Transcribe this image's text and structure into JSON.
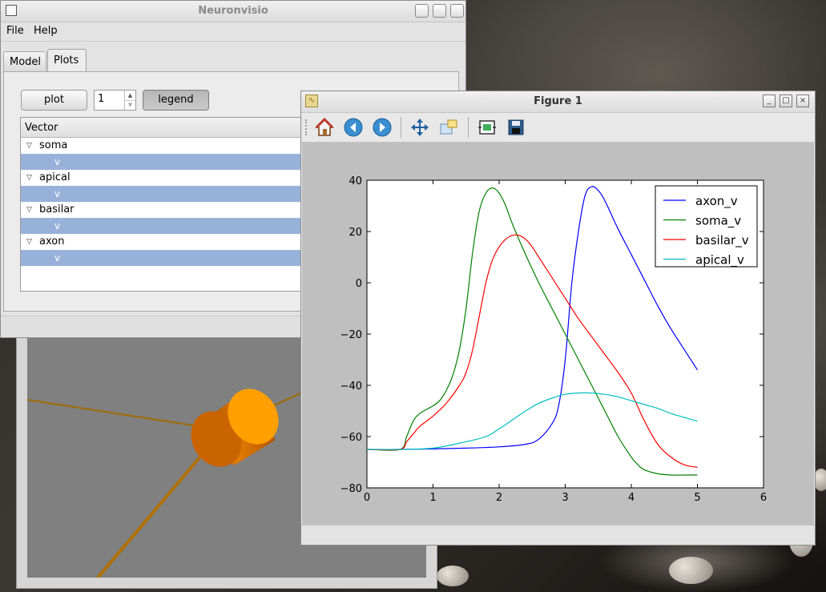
{
  "main_window": {
    "title": "Neuronvisio",
    "menu": [
      "File",
      "Help"
    ],
    "tabs": [
      "Model",
      "Plots"
    ],
    "active_tab": "Plots",
    "plot_button": "plot",
    "spin_value": "1",
    "legend_button": "legend",
    "tree": {
      "header": "Vector",
      "sections": [
        {
          "label": "soma",
          "child": "v"
        },
        {
          "label": "apical",
          "child": "v"
        },
        {
          "label": "basilar",
          "child": "v"
        },
        {
          "label": "axon",
          "child": "v"
        }
      ]
    }
  },
  "figure_window": {
    "title": "Figure 1",
    "toolbar_icons": [
      "home-icon",
      "back-icon",
      "forward-icon",
      "pan-icon",
      "zoom-icon",
      "subplots-icon",
      "save-icon"
    ]
  },
  "colors": {
    "axon_v": "#0000ff",
    "soma_v": "#008000",
    "basilar_v": "#ff0000",
    "apical_v": "#00bfbf",
    "selection": "#98b1d9"
  },
  "chart_data": {
    "type": "line",
    "xlim": [
      0,
      6
    ],
    "ylim": [
      -80,
      40
    ],
    "xticks": [
      0,
      1,
      2,
      3,
      4,
      5,
      6
    ],
    "yticks": [
      40,
      20,
      0,
      -20,
      -40,
      -60,
      -80
    ],
    "grid": false,
    "legend": "top-right",
    "series": [
      {
        "name": "axon_v",
        "color": "#0000ff",
        "x": [
          0,
          0.5,
          1.0,
          1.5,
          2.0,
          2.4,
          2.6,
          2.8,
          2.9,
          3.0,
          3.1,
          3.2,
          3.3,
          3.4,
          3.5,
          3.6,
          3.8,
          4.0,
          4.2,
          4.4,
          4.6,
          4.8,
          5.0
        ],
        "y": [
          -65,
          -65,
          -64.8,
          -64.5,
          -64,
          -63,
          -61,
          -55,
          -48,
          -30,
          0,
          20,
          34,
          37.5,
          36,
          32,
          21,
          11,
          1,
          -9,
          -18,
          -26,
          -34
        ]
      },
      {
        "name": "soma_v",
        "color": "#008000",
        "x": [
          0,
          0.5,
          0.6,
          0.7,
          0.8,
          1.0,
          1.1,
          1.2,
          1.3,
          1.4,
          1.5,
          1.6,
          1.7,
          1.8,
          1.9,
          2.0,
          2.1,
          2.2,
          2.4,
          2.6,
          2.8,
          3.0,
          3.2,
          3.4,
          3.6,
          3.8,
          4.0,
          4.1,
          4.2,
          4.4,
          4.6,
          4.8,
          5.0
        ],
        "y": [
          -65,
          -65,
          -60,
          -54,
          -51,
          -48,
          -46,
          -42,
          -36,
          -26,
          -10,
          12,
          28,
          35,
          37,
          35,
          30,
          23,
          11,
          0,
          -10,
          -20,
          -30,
          -40,
          -50,
          -60,
          -68,
          -71,
          -73,
          -74.5,
          -75,
          -75,
          -75
        ]
      },
      {
        "name": "basilar_v",
        "color": "#ff0000",
        "x": [
          0,
          0.5,
          0.6,
          0.7,
          0.8,
          1.0,
          1.2,
          1.4,
          1.5,
          1.6,
          1.7,
          1.8,
          1.9,
          2.0,
          2.1,
          2.2,
          2.3,
          2.4,
          2.5,
          2.6,
          2.8,
          3.0,
          3.2,
          3.4,
          3.6,
          3.8,
          4.0,
          4.2,
          4.4,
          4.6,
          4.8,
          5.0
        ],
        "y": [
          -65,
          -65,
          -62,
          -59,
          -56,
          -52,
          -47,
          -40,
          -35,
          -26,
          -13,
          0,
          9,
          14,
          17,
          18.5,
          18.5,
          17,
          14,
          10,
          2,
          -6,
          -14,
          -21,
          -28,
          -35,
          -43,
          -54,
          -63,
          -68,
          -71,
          -72
        ]
      },
      {
        "name": "apical_v",
        "color": "#00bfbf",
        "x": [
          0,
          0.5,
          1.0,
          1.5,
          1.8,
          2.0,
          2.2,
          2.4,
          2.6,
          2.8,
          3.0,
          3.2,
          3.4,
          3.6,
          3.8,
          4.0,
          4.2,
          4.4,
          4.6,
          4.8,
          5.0
        ],
        "y": [
          -65,
          -65,
          -64.5,
          -62,
          -60,
          -57,
          -53.5,
          -50,
          -47,
          -45,
          -43.5,
          -43,
          -43,
          -43.5,
          -44.5,
          -46,
          -47.5,
          -49,
          -51,
          -52.5,
          -54
        ]
      }
    ]
  }
}
